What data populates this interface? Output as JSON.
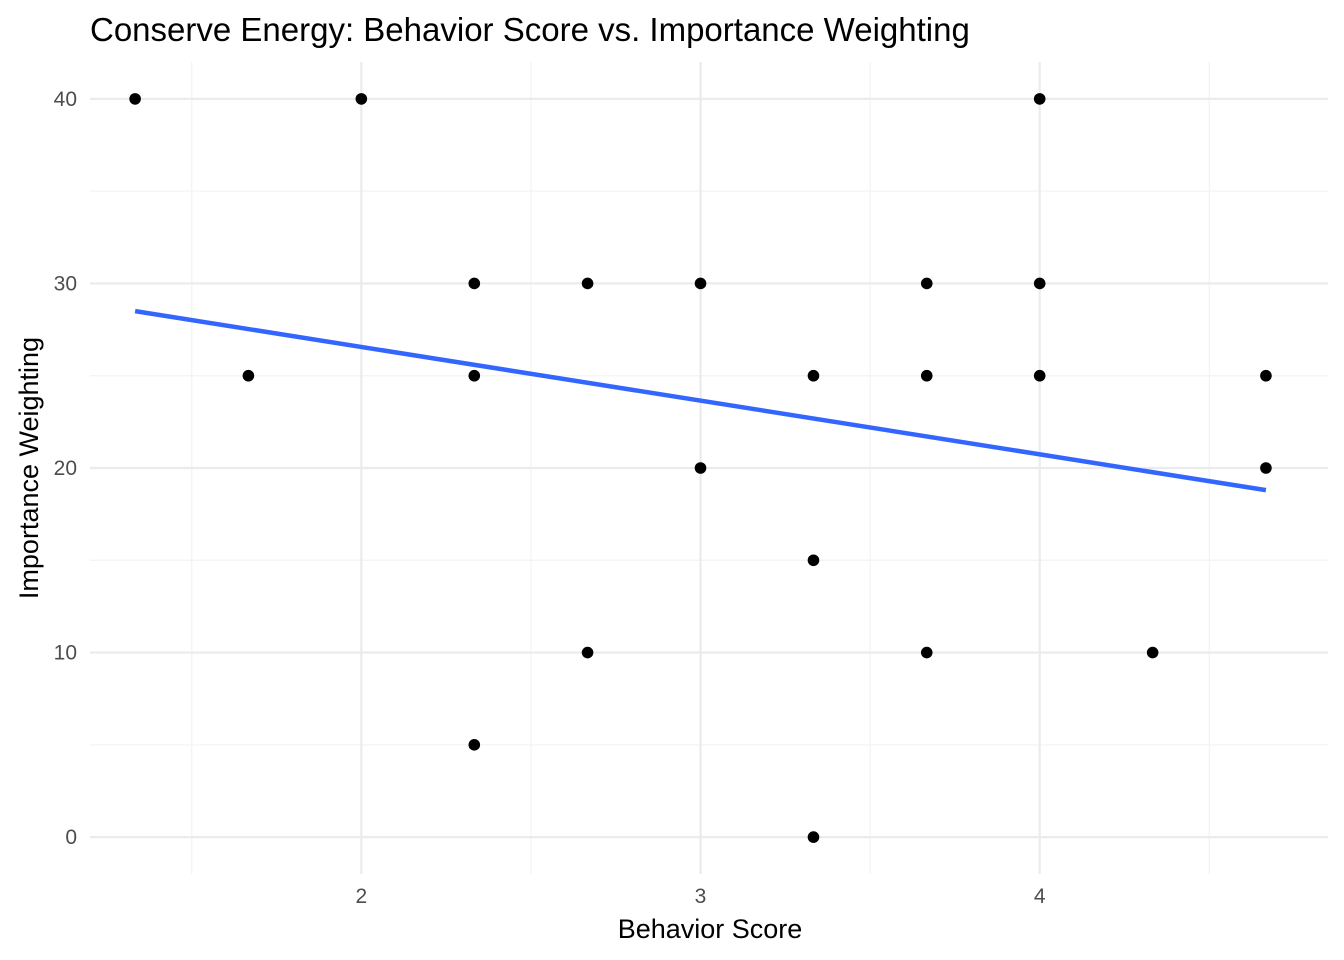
{
  "chart_data": {
    "type": "scatter",
    "title": "Conserve Energy: Behavior Score vs. Importance Weighting",
    "xlabel": "Behavior Score",
    "ylabel": "Importance Weighting",
    "xlim": [
      1.2,
      4.85
    ],
    "ylim": [
      -2,
      42
    ],
    "x_ticks": [
      2,
      3,
      4
    ],
    "x_tick_labels": [
      "2",
      "3",
      "4"
    ],
    "x_minor_ticks": [
      1.5,
      2.5,
      3.5,
      4.5
    ],
    "y_ticks": [
      0,
      10,
      20,
      30,
      40
    ],
    "y_tick_labels": [
      "0",
      "10",
      "20",
      "30",
      "40"
    ],
    "y_minor_ticks": [
      5,
      15,
      25,
      35
    ],
    "grid": true,
    "legend": "none",
    "point_color": "#000000",
    "trend_color": "#3366ff",
    "points": [
      {
        "x": 1.333,
        "y": 40
      },
      {
        "x": 1.667,
        "y": 25
      },
      {
        "x": 2.0,
        "y": 40
      },
      {
        "x": 2.333,
        "y": 30
      },
      {
        "x": 2.333,
        "y": 25
      },
      {
        "x": 2.333,
        "y": 5
      },
      {
        "x": 2.667,
        "y": 30
      },
      {
        "x": 2.667,
        "y": 10
      },
      {
        "x": 3.0,
        "y": 30
      },
      {
        "x": 3.0,
        "y": 20
      },
      {
        "x": 3.333,
        "y": 25
      },
      {
        "x": 3.333,
        "y": 15
      },
      {
        "x": 3.333,
        "y": 0
      },
      {
        "x": 3.667,
        "y": 30
      },
      {
        "x": 3.667,
        "y": 25
      },
      {
        "x": 3.667,
        "y": 10
      },
      {
        "x": 4.0,
        "y": 40
      },
      {
        "x": 4.0,
        "y": 30
      },
      {
        "x": 4.0,
        "y": 25
      },
      {
        "x": 4.333,
        "y": 10
      },
      {
        "x": 4.667,
        "y": 25
      },
      {
        "x": 4.667,
        "y": 20
      }
    ],
    "trend_line": {
      "x": [
        1.333,
        4.667
      ],
      "y": [
        28.5,
        18.8
      ]
    }
  }
}
